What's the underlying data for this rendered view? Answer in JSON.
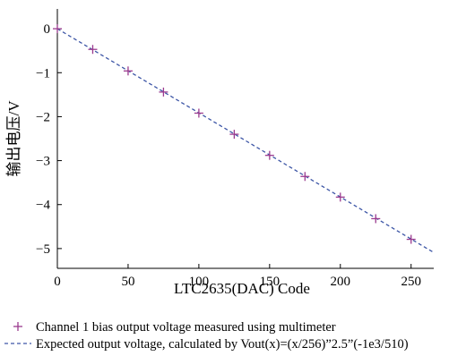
{
  "chart_data": {
    "type": "scatter",
    "title": "",
    "xlabel": "LTC2635(DAC) Code",
    "ylabel": "输出电压/V",
    "xlim": [
      0,
      266
    ],
    "ylim": [
      -5.45,
      0.45
    ],
    "xticks": [
      0,
      50,
      100,
      150,
      200,
      250
    ],
    "yticks": [
      0,
      -1,
      -2,
      -3,
      -4,
      -5
    ],
    "grid": false,
    "legend_position": "bottom",
    "series": [
      {
        "name": "Channel 1 bias output voltage measured using multimeter",
        "kind": "scatter",
        "marker": "plus",
        "color": "#9b3b8f",
        "points": [
          {
            "x": 0,
            "y": 0.0
          },
          {
            "x": 25,
            "y": -0.47
          },
          {
            "x": 50,
            "y": -0.96
          },
          {
            "x": 75,
            "y": -1.44
          },
          {
            "x": 100,
            "y": -1.92
          },
          {
            "x": 125,
            "y": -2.4
          },
          {
            "x": 150,
            "y": -2.88
          },
          {
            "x": 175,
            "y": -3.36
          },
          {
            "x": 200,
            "y": -3.83
          },
          {
            "x": 225,
            "y": -4.32
          },
          {
            "x": 250,
            "y": -4.79
          }
        ]
      },
      {
        "name": "Expected output voltage, calculated by Vout(x)=(x/256)”2.5”(-1e3/510)",
        "kind": "line",
        "style": "dashed",
        "color": "#3d56a6",
        "points": [
          {
            "x": 0,
            "y": 0.0
          },
          {
            "x": 266,
            "y": -5.09
          }
        ]
      }
    ]
  }
}
